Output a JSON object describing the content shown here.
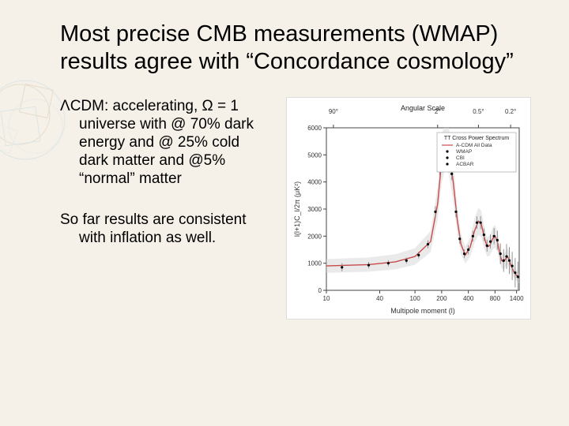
{
  "title": "Most precise CMB measurements (WMAP) results agree with “Concordance cosmology”",
  "para1": "ΛCDM: accelerating, Ω = 1 universe with @ 70% dark energy and @ 25% cold dark matter and @5% “normal” matter",
  "para2": "So far results are consistent with inflation as well.",
  "chart": {
    "type": "line+scatter",
    "title_top": "Angular Scale",
    "top_ticks": [
      "90°",
      "2°",
      "0.5°",
      "0.2°"
    ],
    "legend_title": "TT Cross Power Spectrum",
    "legend_items": [
      "A-CDM All Data",
      "WMAP",
      "CBI",
      "ACBAR"
    ],
    "ylabel": "l(l+1)C_l/2π (μK²)",
    "xlabel": "Multipole moment (l)",
    "ylim": [
      0,
      6000
    ],
    "ytick_step": 1000,
    "xlim": [
      10,
      1500
    ],
    "xtick_labels": [
      "10",
      "40",
      "100",
      "200",
      "400",
      "800",
      "1400"
    ],
    "line_color": "#c94a4a",
    "marker_color": "#000000",
    "error_color": "#888888",
    "band_color": "#d8d8d8",
    "grid_color": "#cccccc",
    "background_color": "#ffffff",
    "curve": [
      [
        10,
        900
      ],
      [
        30,
        950
      ],
      [
        60,
        1050
      ],
      [
        100,
        1250
      ],
      [
        150,
        1800
      ],
      [
        180,
        3200
      ],
      [
        200,
        4800
      ],
      [
        220,
        5500
      ],
      [
        240,
        5200
      ],
      [
        270,
        4000
      ],
      [
        300,
        2600
      ],
      [
        330,
        1700
      ],
      [
        370,
        1300
      ],
      [
        420,
        1600
      ],
      [
        470,
        2200
      ],
      [
        520,
        2550
      ],
      [
        560,
        2450
      ],
      [
        600,
        2000
      ],
      [
        650,
        1600
      ],
      [
        700,
        1650
      ],
      [
        750,
        1900
      ],
      [
        800,
        2000
      ],
      [
        850,
        1800
      ],
      [
        900,
        1400
      ],
      [
        950,
        1100
      ],
      [
        1000,
        1050
      ],
      [
        1050,
        1150
      ],
      [
        1100,
        1250
      ],
      [
        1150,
        1150
      ],
      [
        1200,
        950
      ],
      [
        1300,
        700
      ],
      [
        1400,
        550
      ],
      [
        1500,
        450
      ]
    ],
    "points": [
      [
        15,
        850,
        150
      ],
      [
        30,
        930,
        120
      ],
      [
        50,
        1000,
        110
      ],
      [
        80,
        1100,
        110
      ],
      [
        110,
        1300,
        120
      ],
      [
        140,
        1700,
        150
      ],
      [
        170,
        2900,
        200
      ],
      [
        190,
        4500,
        250
      ],
      [
        210,
        5500,
        280
      ],
      [
        230,
        5300,
        260
      ],
      [
        260,
        4300,
        230
      ],
      [
        290,
        2900,
        200
      ],
      [
        320,
        1900,
        180
      ],
      [
        360,
        1350,
        160
      ],
      [
        400,
        1500,
        170
      ],
      [
        450,
        2000,
        200
      ],
      [
        500,
        2500,
        230
      ],
      [
        550,
        2500,
        240
      ],
      [
        600,
        2050,
        230
      ],
      [
        650,
        1650,
        220
      ],
      [
        710,
        1800,
        260
      ],
      [
        780,
        2000,
        300
      ],
      [
        850,
        1850,
        350
      ],
      [
        920,
        1350,
        380
      ],
      [
        1000,
        1100,
        420
      ],
      [
        1080,
        1250,
        460
      ],
      [
        1160,
        1100,
        500
      ],
      [
        1250,
        900,
        520
      ],
      [
        1350,
        650,
        540
      ],
      [
        1450,
        500,
        560
      ]
    ]
  },
  "decoration_colors": [
    "#cbb89a",
    "#b3d4e0",
    "#d6e3ea"
  ]
}
